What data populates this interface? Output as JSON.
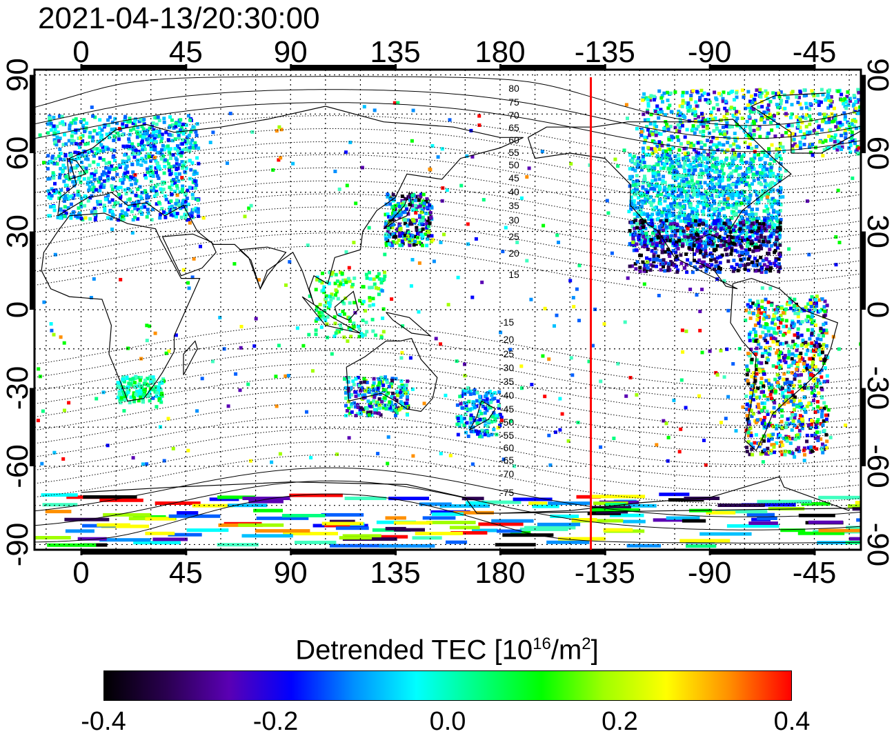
{
  "title": "2021-04-13/20:30:00",
  "map": {
    "projection": "equirectangular",
    "lon_range": [
      -20,
      335
    ],
    "lat_range": [
      -92,
      92
    ],
    "top_lon_labels": [
      "0",
      "45",
      "90",
      "135",
      "180",
      "-135",
      "-90",
      "-45"
    ],
    "bottom_lon_labels": [
      "0",
      "45",
      "90",
      "135",
      "180",
      "-135",
      "-90",
      "-45"
    ],
    "left_lat_labels": [
      "90",
      "60",
      "30",
      "0",
      "-30",
      "-60",
      "-90"
    ],
    "right_lat_labels": [
      "90",
      "60",
      "30",
      "0",
      "-30",
      "-60",
      "-90"
    ],
    "grid": "dotted, every 15 deg",
    "terminator_longitude": -141,
    "terminator_color": "#ff0000",
    "magnetic_latitude_labels_north": [
      "80",
      "75",
      "70",
      "65",
      "60",
      "55",
      "50",
      "45",
      "40",
      "35",
      "30",
      "25",
      "20",
      "15"
    ],
    "magnetic_latitude_labels_south": [
      "-15",
      "-20",
      "-25",
      "-30",
      "-35",
      "-40",
      "-45",
      "-50",
      "-55",
      "-60",
      "-65",
      "-70",
      "-75"
    ]
  },
  "colorbar": {
    "label_main": "Detrended TEC  [10",
    "label_exp": "16",
    "label_mid": "/m",
    "label_exp2": "2",
    "label_end": "]",
    "ticks": [
      "-0.4",
      "-0.2",
      "0.0",
      "0.2",
      "0.4"
    ],
    "range": [
      -0.4,
      0.4
    ],
    "colors": [
      "#000000",
      "#2a0050",
      "#5a00b4",
      "#0000ff",
      "#0090ff",
      "#00ffff",
      "#00ff80",
      "#00ff00",
      "#a0ff00",
      "#ffff00",
      "#ff9000",
      "#ff0000"
    ]
  }
}
